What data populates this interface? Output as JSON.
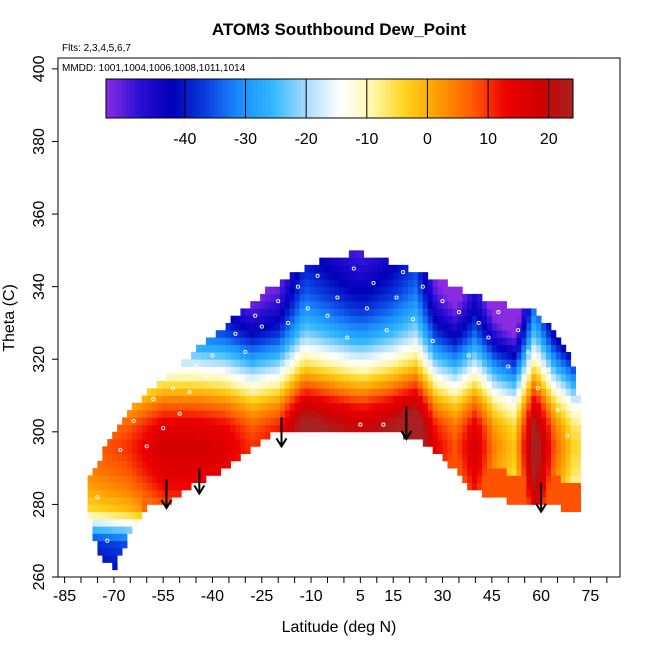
{
  "chart_data": {
    "type": "heatmap",
    "title": "ATOM3 Southbound Dew_Point",
    "annotations": {
      "flights": "Flts: 2,3,4,5,6,7",
      "dates": "MMDD: 1001,1004,1006,1008,1011,1014"
    },
    "xlabel": "Latitude (deg N)",
    "ylabel": "Theta (C)",
    "xlim": [
      -87,
      84
    ],
    "ylim": [
      260,
      403
    ],
    "x_tick_labels": [
      {
        "value": -85,
        "label": "-85"
      },
      {
        "value": -70,
        "label": "-70"
      },
      {
        "value": -55,
        "label": "-55"
      },
      {
        "value": -40,
        "label": "-40"
      },
      {
        "value": -25,
        "label": "-25"
      },
      {
        "value": -10,
        "label": "-10"
      },
      {
        "value": 5,
        "label": "5"
      },
      {
        "value": 15,
        "label": "15"
      },
      {
        "value": 30,
        "label": "30"
      },
      {
        "value": 45,
        "label": "45"
      },
      {
        "value": 60,
        "label": "60"
      },
      {
        "value": 75,
        "label": "75"
      }
    ],
    "y_tick_labels": [
      {
        "value": 260,
        "label": "260"
      },
      {
        "value": 280,
        "label": "280"
      },
      {
        "value": 300,
        "label": "300"
      },
      {
        "value": 320,
        "label": "320"
      },
      {
        "value": 340,
        "label": "340"
      },
      {
        "value": 360,
        "label": "360"
      },
      {
        "value": 380,
        "label": "380"
      },
      {
        "value": 400,
        "label": "400"
      }
    ],
    "colorbar": {
      "range": [
        -53,
        24
      ],
      "ticks": [
        {
          "value": -40,
          "label": "-40"
        },
        {
          "value": -30,
          "label": "-30"
        },
        {
          "value": -20,
          "label": "-20"
        },
        {
          "value": -10,
          "label": "-10"
        },
        {
          "value": 0,
          "label": "0"
        },
        {
          "value": 10,
          "label": "10"
        },
        {
          "value": 20,
          "label": "20"
        }
      ],
      "colors": [
        "#8a2be2",
        "#2a0fd6",
        "#0000b8",
        "#0a3fe0",
        "#1a8cff",
        "#33b8ff",
        "#a8dcff",
        "#ffffff",
        "#fff7a8",
        "#ffd21a",
        "#ff9a00",
        "#ff5a00",
        "#ee0000",
        "#d00000",
        "#a82020"
      ]
    },
    "domain_profile": {
      "lat": [
        -78,
        -75,
        -72,
        -70,
        -66,
        -62,
        -58,
        -54,
        -50,
        -46,
        -42,
        -38,
        -34,
        -30,
        -26,
        -22,
        -18,
        -14,
        -10,
        -6,
        -2,
        2,
        6,
        10,
        14,
        18,
        22,
        26,
        30,
        34,
        38,
        42,
        46,
        50,
        54,
        58,
        62,
        66,
        70,
        72
      ],
      "theta_top": [
        288,
        291,
        297,
        300,
        306,
        309,
        312,
        315,
        318,
        322,
        325,
        328,
        331,
        334,
        337,
        340,
        342,
        344,
        346,
        348,
        348,
        349,
        349,
        348,
        347,
        346,
        344,
        343,
        342,
        340,
        338,
        337,
        336,
        335,
        334,
        333,
        330,
        325,
        318,
        305
      ],
      "theta_bottom": [
        278,
        268,
        264,
        262,
        270,
        277,
        280,
        280,
        283,
        285,
        287,
        289,
        291,
        294,
        297,
        299,
        300,
        300,
        301,
        301,
        301,
        301,
        301,
        300,
        300,
        299,
        298,
        296,
        293,
        289,
        285,
        283,
        282,
        281,
        281,
        280,
        280,
        279,
        278,
        277
      ]
    },
    "vertical_profile": {
      "theta": [
        262,
        270,
        278,
        284,
        290,
        296,
        302,
        308,
        314,
        320,
        326,
        332,
        338,
        344,
        350
      ],
      "dew_point": [
        -30,
        -25,
        8,
        14,
        18,
        20,
        17,
        8,
        -5,
        -18,
        -30,
        -38,
        -44,
        -48,
        -52
      ]
    },
    "column_offsets": {
      "lat": [
        -80,
        -66,
        -55,
        -45,
        -36,
        -28,
        -20,
        -12,
        -4,
        2,
        6,
        14,
        22,
        28,
        34,
        40,
        46,
        52,
        58,
        64,
        70
      ],
      "offset": [
        -14,
        -10,
        -2,
        -2,
        -4,
        -10,
        -6,
        10,
        6,
        3,
        2,
        6,
        12,
        -6,
        -12,
        -2,
        -16,
        -22,
        8,
        -12,
        -24
      ]
    },
    "marker_samples": [
      {
        "lat": -75,
        "theta": 282
      },
      {
        "lat": -72,
        "theta": 270
      },
      {
        "lat": -68,
        "theta": 295
      },
      {
        "lat": -64,
        "theta": 303
      },
      {
        "lat": -60,
        "theta": 296
      },
      {
        "lat": -58,
        "theta": 309
      },
      {
        "lat": -55,
        "theta": 301
      },
      {
        "lat": -52,
        "theta": 312
      },
      {
        "lat": -50,
        "theta": 305
      },
      {
        "lat": -47,
        "theta": 311
      },
      {
        "lat": -45,
        "theta": 318
      },
      {
        "lat": -42,
        "theta": 315
      },
      {
        "lat": -40,
        "theta": 321
      },
      {
        "lat": -37,
        "theta": 317
      },
      {
        "lat": -33,
        "theta": 327
      },
      {
        "lat": -30,
        "theta": 322
      },
      {
        "lat": -27,
        "theta": 332
      },
      {
        "lat": -25,
        "theta": 329
      },
      {
        "lat": -20,
        "theta": 336
      },
      {
        "lat": -17,
        "theta": 330
      },
      {
        "lat": -14,
        "theta": 340
      },
      {
        "lat": -11,
        "theta": 334
      },
      {
        "lat": -8,
        "theta": 343
      },
      {
        "lat": -5,
        "theta": 332
      },
      {
        "lat": -2,
        "theta": 337
      },
      {
        "lat": 1,
        "theta": 326
      },
      {
        "lat": 3,
        "theta": 345
      },
      {
        "lat": 5,
        "theta": 302
      },
      {
        "lat": 7,
        "theta": 334
      },
      {
        "lat": 9,
        "theta": 341
      },
      {
        "lat": 12,
        "theta": 302
      },
      {
        "lat": 13,
        "theta": 328
      },
      {
        "lat": 16,
        "theta": 337
      },
      {
        "lat": 18,
        "theta": 344
      },
      {
        "lat": 21,
        "theta": 331
      },
      {
        "lat": 24,
        "theta": 340
      },
      {
        "lat": 27,
        "theta": 325
      },
      {
        "lat": 30,
        "theta": 336
      },
      {
        "lat": 32,
        "theta": 313
      },
      {
        "lat": 35,
        "theta": 333
      },
      {
        "lat": 38,
        "theta": 321
      },
      {
        "lat": 41,
        "theta": 330
      },
      {
        "lat": 44,
        "theta": 326
      },
      {
        "lat": 47,
        "theta": 333
      },
      {
        "lat": 50,
        "theta": 318
      },
      {
        "lat": 53,
        "theta": 328
      },
      {
        "lat": 56,
        "theta": 322
      },
      {
        "lat": 59,
        "theta": 312
      },
      {
        "lat": 62,
        "theta": 317
      },
      {
        "lat": 65,
        "theta": 306
      },
      {
        "lat": 68,
        "theta": 299
      }
    ],
    "arrows": [
      {
        "lat": -54,
        "theta_from": 287,
        "theta_to": 279
      },
      {
        "lat": -44,
        "theta_from": 290,
        "theta_to": 283
      },
      {
        "lat": -19,
        "theta_from": 304,
        "theta_to": 296
      },
      {
        "lat": 19,
        "theta_from": 307,
        "theta_to": 298
      },
      {
        "lat": 60,
        "theta_from": 286,
        "theta_to": 278
      }
    ]
  }
}
